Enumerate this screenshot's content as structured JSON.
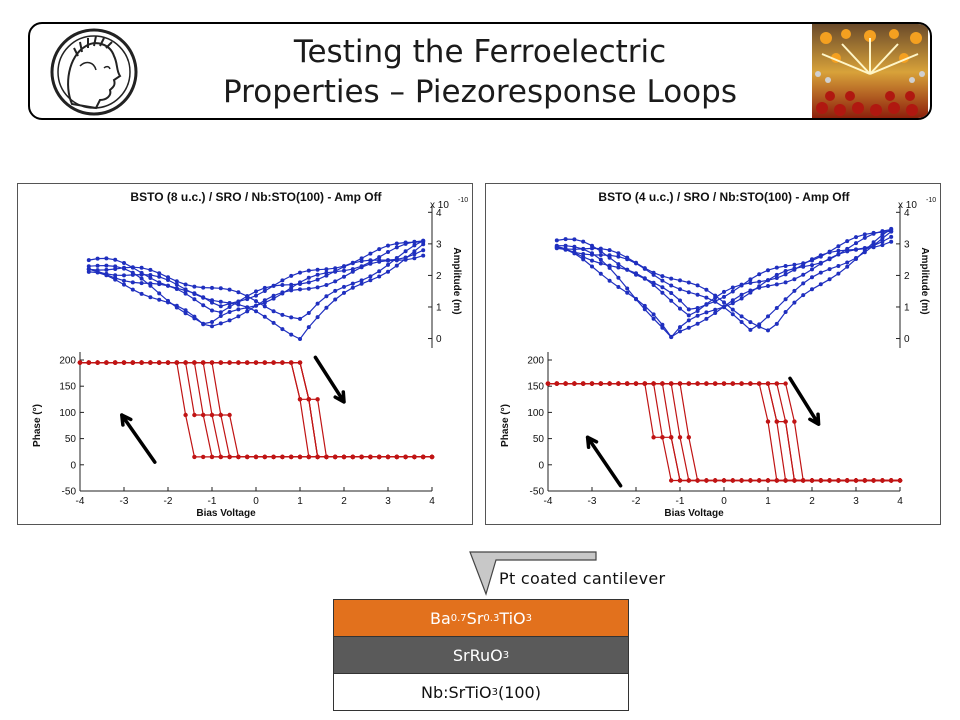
{
  "header": {
    "title_line1": "Testing the Ferroelectric",
    "title_line2": "Properties – Piezoresponse Loops",
    "logo_icon": "minerva-head-logo",
    "image_icon": "crystal-lattice-image"
  },
  "colors": {
    "amplitude": "#1f2fbf",
    "phase": "#c01414",
    "arrow": "#000000",
    "bsto_layer": "#e2711d",
    "sro_layer": "#5a5a5a"
  },
  "chart_data": [
    {
      "type": "line",
      "title": "BSTO (8 u.c.) / SRO / Nb:STO(100) - Amp Off",
      "xlabel": "Bias Voltage",
      "xlim": [
        -4,
        4
      ],
      "x_ticks": [
        "-4",
        "-3",
        "-2",
        "-1",
        "0",
        "1",
        "2",
        "3",
        "4"
      ],
      "phase": {
        "ylabel": "Phase (°)",
        "ylim": [
          -50,
          200
        ],
        "y_ticks": [
          "-50",
          "0",
          "50",
          "100",
          "150",
          "200"
        ],
        "high": 195,
        "low": 15,
        "down_switch": [
          0.85,
          1.0,
          1.05,
          1.1,
          1.2
        ],
        "up_switch": [
          -0.6,
          -0.8,
          -1.0,
          -1.2,
          -1.45
        ]
      },
      "amplitude": {
        "ylabel": "Amplitude (m)",
        "scale_label": "x 10",
        "scale_exp": "-10",
        "ylim": [
          -0.3,
          4.2
        ],
        "y_ticks": [
          "0",
          "1",
          "2",
          "3",
          "4"
        ],
        "left_level": 2.2,
        "right_level": 2.9,
        "min_x": [
          -1.1,
          -0.85,
          1.0,
          1.1
        ],
        "min_y": [
          0.3,
          0.9,
          0.1,
          0.6
        ],
        "offsets": [
          -0.4,
          -0.2,
          0.0,
          0.2,
          0.4,
          0.6
        ]
      }
    },
    {
      "type": "line",
      "title": "BSTO (4 u.c.) / SRO / Nb:STO(100) - Amp Off",
      "xlabel": "Bias Voltage",
      "xlim": [
        -4,
        4
      ],
      "x_ticks": [
        "-4",
        "-3",
        "-2",
        "-1",
        "0",
        "1",
        "2",
        "3",
        "4"
      ],
      "phase": {
        "ylabel": "Phase (°)",
        "ylim": [
          -50,
          200
        ],
        "y_ticks": [
          "-50",
          "0",
          "50",
          "100",
          "150",
          "200"
        ],
        "high": 155,
        "low": -30,
        "down_switch": [
          0.85,
          1.1,
          1.2,
          1.3,
          1.55
        ],
        "up_switch": [
          -0.75,
          -0.9,
          -1.05,
          -1.2,
          -1.4
        ]
      },
      "amplitude": {
        "ylabel": "Amplitude (m)",
        "scale_label": "x 10",
        "scale_exp": "-10",
        "ylim": [
          -0.3,
          4.2
        ],
        "y_ticks": [
          "0",
          "1",
          "2",
          "3",
          "4"
        ],
        "left_level": 2.9,
        "right_level": 3.3,
        "min_x": [
          -1.2,
          -0.75,
          0.65,
          1.1
        ],
        "min_y": [
          0.0,
          0.8,
          0.3,
          0.2
        ],
        "offsets": [
          -0.3,
          -0.15,
          0.0,
          0.15,
          0.3,
          0.45
        ]
      }
    }
  ],
  "stack": {
    "cantilever_label": "Pt coated cantilever",
    "bsto": {
      "a": "Ba",
      "a_sub": "0.7",
      "b": "Sr",
      "b_sub": "0.3",
      "c": "TiO",
      "c_sub": "3"
    },
    "sro": {
      "a": "SrRuO",
      "a_sub": "3"
    },
    "substrate": {
      "a": "Nb:SrTiO",
      "a_sub": "3",
      "b": " (100)"
    }
  }
}
